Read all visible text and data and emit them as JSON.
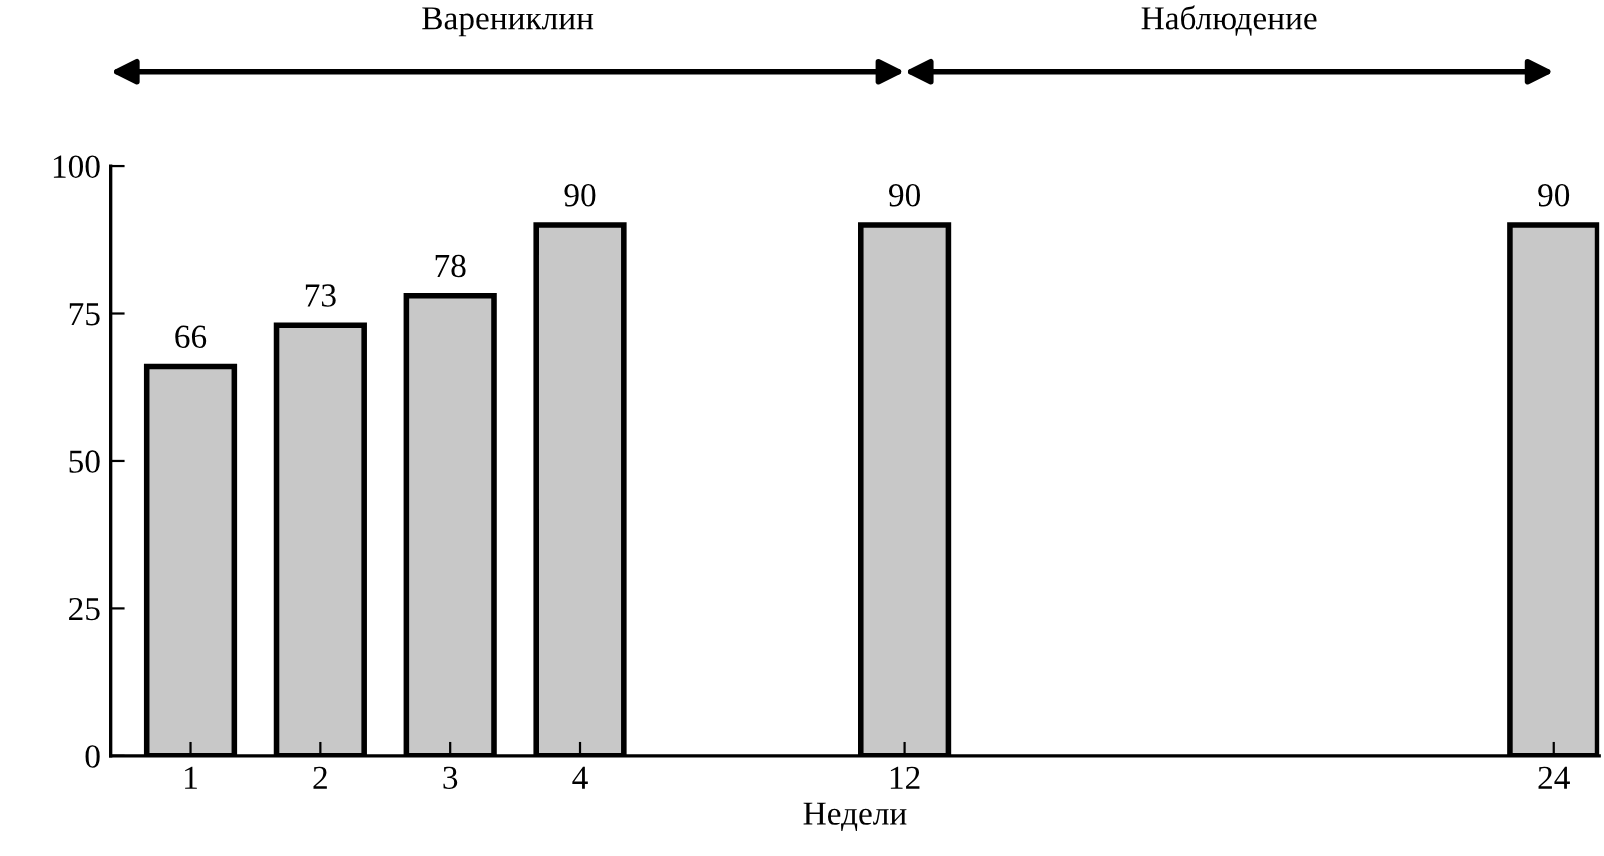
{
  "chart_data": {
    "type": "bar",
    "categories": [
      "1",
      null,
      "2",
      null,
      "3",
      null,
      "4",
      null,
      null,
      null,
      null,
      "12",
      null,
      null,
      null,
      null,
      null,
      null,
      null,
      null,
      null,
      "24"
    ],
    "values": [
      66,
      null,
      73,
      null,
      78,
      null,
      90,
      null,
      null,
      null,
      null,
      90,
      null,
      null,
      null,
      null,
      null,
      null,
      null,
      null,
      null,
      90
    ],
    "color": "#c8c8c8",
    "xlabel": "Недели",
    "ylim": [
      0,
      100
    ],
    "yticks": [
      0,
      25,
      50,
      75,
      100
    ],
    "grid": false,
    "data_labels": true,
    "annotations": [
      "Варениклин",
      "Наблюдение"
    ]
  }
}
